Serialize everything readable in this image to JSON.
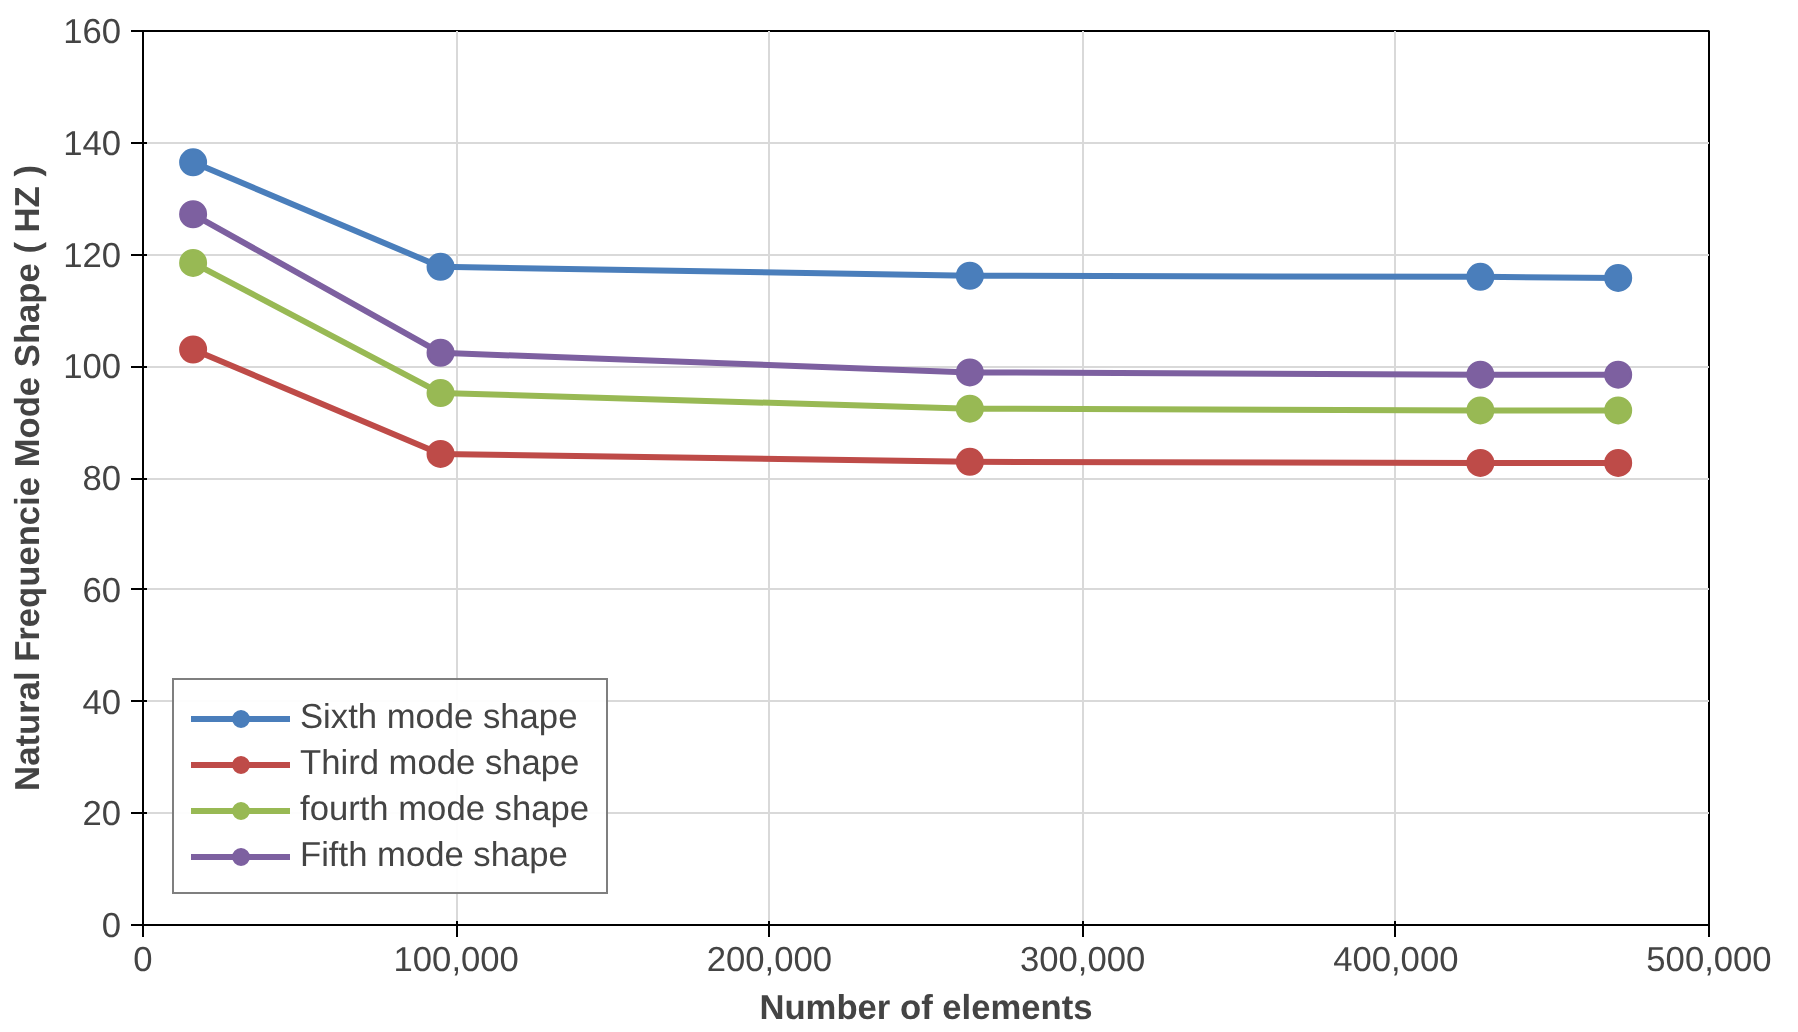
{
  "chart_data": {
    "type": "line",
    "xlabel": "Number of elements",
    "ylabel": "Natural Frequencie Mode Shape ( HZ )",
    "x": [
      16000,
      95000,
      264000,
      427000,
      471000
    ],
    "series": [
      {
        "name": "Sixth mode shape",
        "color": "#4a7ebb",
        "values": [
          136.5,
          117.8,
          116.2,
          116.0,
          115.8
        ]
      },
      {
        "name": "Third mode shape",
        "color": "#be4b48",
        "values": [
          103.0,
          84.3,
          82.9,
          82.7,
          82.7
        ]
      },
      {
        "name": "fourth mode shape",
        "color": "#98b954",
        "values": [
          118.5,
          95.2,
          92.4,
          92.1,
          92.1
        ]
      },
      {
        "name": "Fifth mode shape",
        "color": "#7d60a0",
        "values": [
          127.2,
          102.4,
          98.9,
          98.5,
          98.5
        ]
      }
    ],
    "xlim": [
      0,
      500000
    ],
    "xticks": [
      {
        "value": 0,
        "label": "0"
      },
      {
        "value": 100000,
        "label": "100,000"
      },
      {
        "value": 200000,
        "label": "200,000"
      },
      {
        "value": 300000,
        "label": "300,000"
      },
      {
        "value": 400000,
        "label": "400,000"
      },
      {
        "value": 500000,
        "label": "500,000"
      }
    ],
    "ylim": [
      0,
      160
    ],
    "yticks": [
      0,
      20,
      40,
      60,
      80,
      100,
      120,
      140,
      160
    ],
    "grid": true,
    "legend": "bottom left",
    "marker": "circle",
    "line_style": "solid"
  }
}
